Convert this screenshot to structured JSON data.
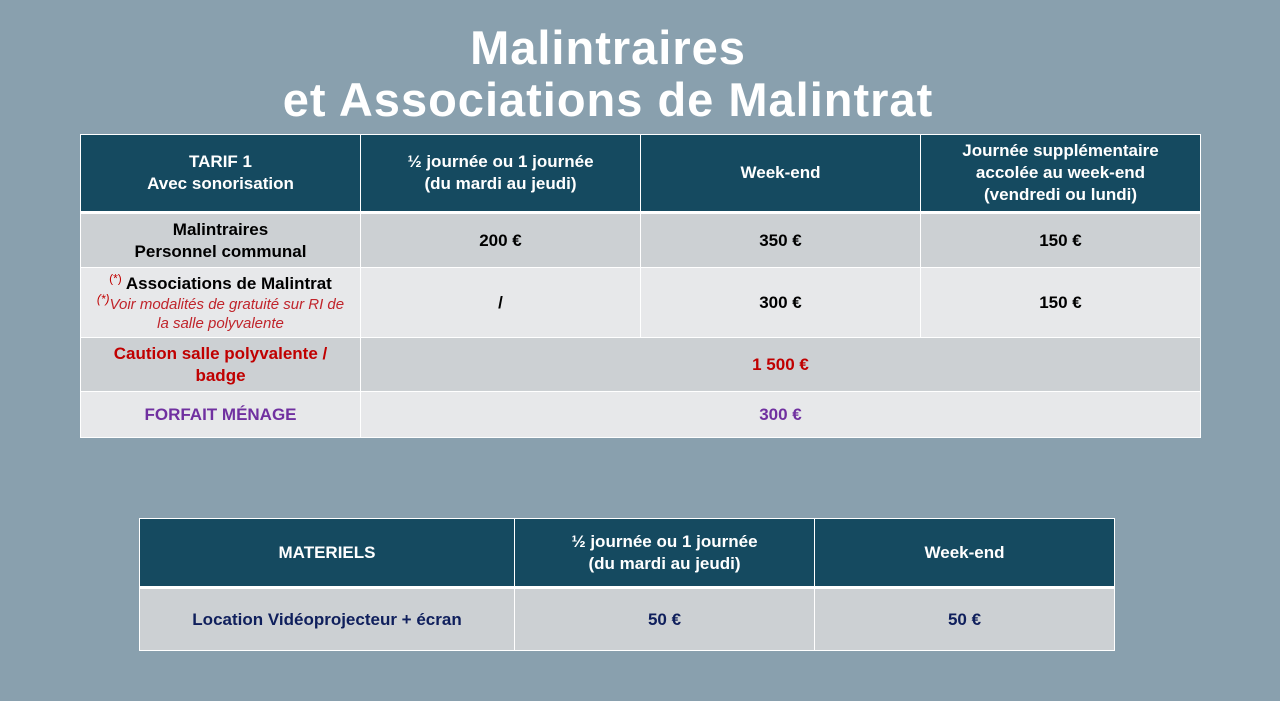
{
  "title": {
    "line1": "Malintraires",
    "line2": "et Associations de Malintrat"
  },
  "tarif_table": {
    "headers": {
      "col1_line1": "TARIF 1",
      "col1_line2": "Avec sonorisation",
      "col2_line1": "½ journée ou 1 journée",
      "col2_line2": "(du mardi au jeudi)",
      "col3": "Week-end",
      "col4_line1": "Journée supplémentaire",
      "col4_line2": "accolée au week-end",
      "col4_line3": "(vendredi ou lundi)"
    },
    "rows": [
      {
        "label_line1": "Malintraires",
        "label_line2": "Personnel communal",
        "half_day": "200 €",
        "weekend": "350 €",
        "extra_day": "150 €"
      },
      {
        "marker": "(*)",
        "label": "Associations de Malintrat",
        "note_marker": "(*)",
        "note_line1": "Voir modalités de gratuité sur RI de",
        "note_line2": "la salle polyvalente",
        "half_day": "/",
        "weekend": "300 €",
        "extra_day": "150 €"
      }
    ],
    "caution": {
      "label_line1": "Caution salle polyvalente /",
      "label_line2": "badge",
      "value": "1 500 €"
    },
    "menage": {
      "label": "FORFAIT MÉNAGE",
      "value": "300 €"
    }
  },
  "materiel_table": {
    "headers": {
      "col1": "MATERIELS",
      "col2_line1": "½ journée ou 1 journée",
      "col2_line2": "(du mardi au jeudi)",
      "col3": "Week-end"
    },
    "rows": [
      {
        "label": "Location Vidéoprojecteur + écran",
        "half_day": "50 €",
        "weekend": "50 €"
      }
    ]
  },
  "colors": {
    "background": "#89a0ae",
    "header": "#154a60",
    "row_dark": "#ccd0d3",
    "row_light": "#e7e8ea",
    "caution_text": "#c00000",
    "menage_text": "#7030a0",
    "materiel_text": "#0f1f5c"
  }
}
